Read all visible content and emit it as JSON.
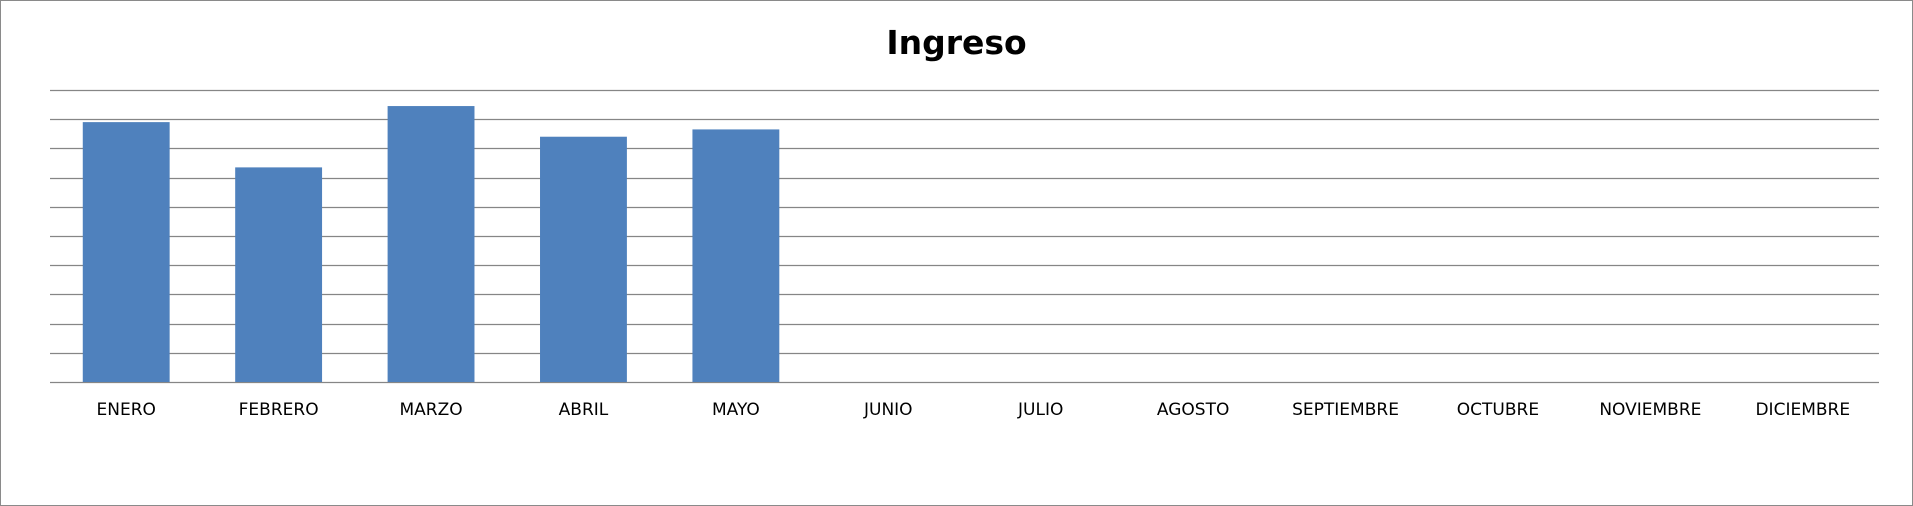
{
  "chart_data": {
    "type": "bar",
    "title": "Ingreso",
    "xlabel": "",
    "ylabel": "",
    "categories": [
      "ENERO",
      "FEBRERO",
      "MARZO",
      "ABRIL",
      "MAYO",
      "JUNIO",
      "JULIO",
      "AGOSTO",
      "SEPTIEMBRE",
      "OCTUBRE",
      "NOVIEMBRE",
      "DICIEMBRE"
    ],
    "values": [
      8.9,
      7.35,
      9.45,
      8.4,
      8.65,
      null,
      null,
      null,
      null,
      null,
      null,
      null
    ],
    "ylim": [
      0,
      10
    ],
    "gridlines": 10,
    "grid": true,
    "legend": "none",
    "bar_color": "#4F81BD",
    "grid_color": "#868686"
  }
}
